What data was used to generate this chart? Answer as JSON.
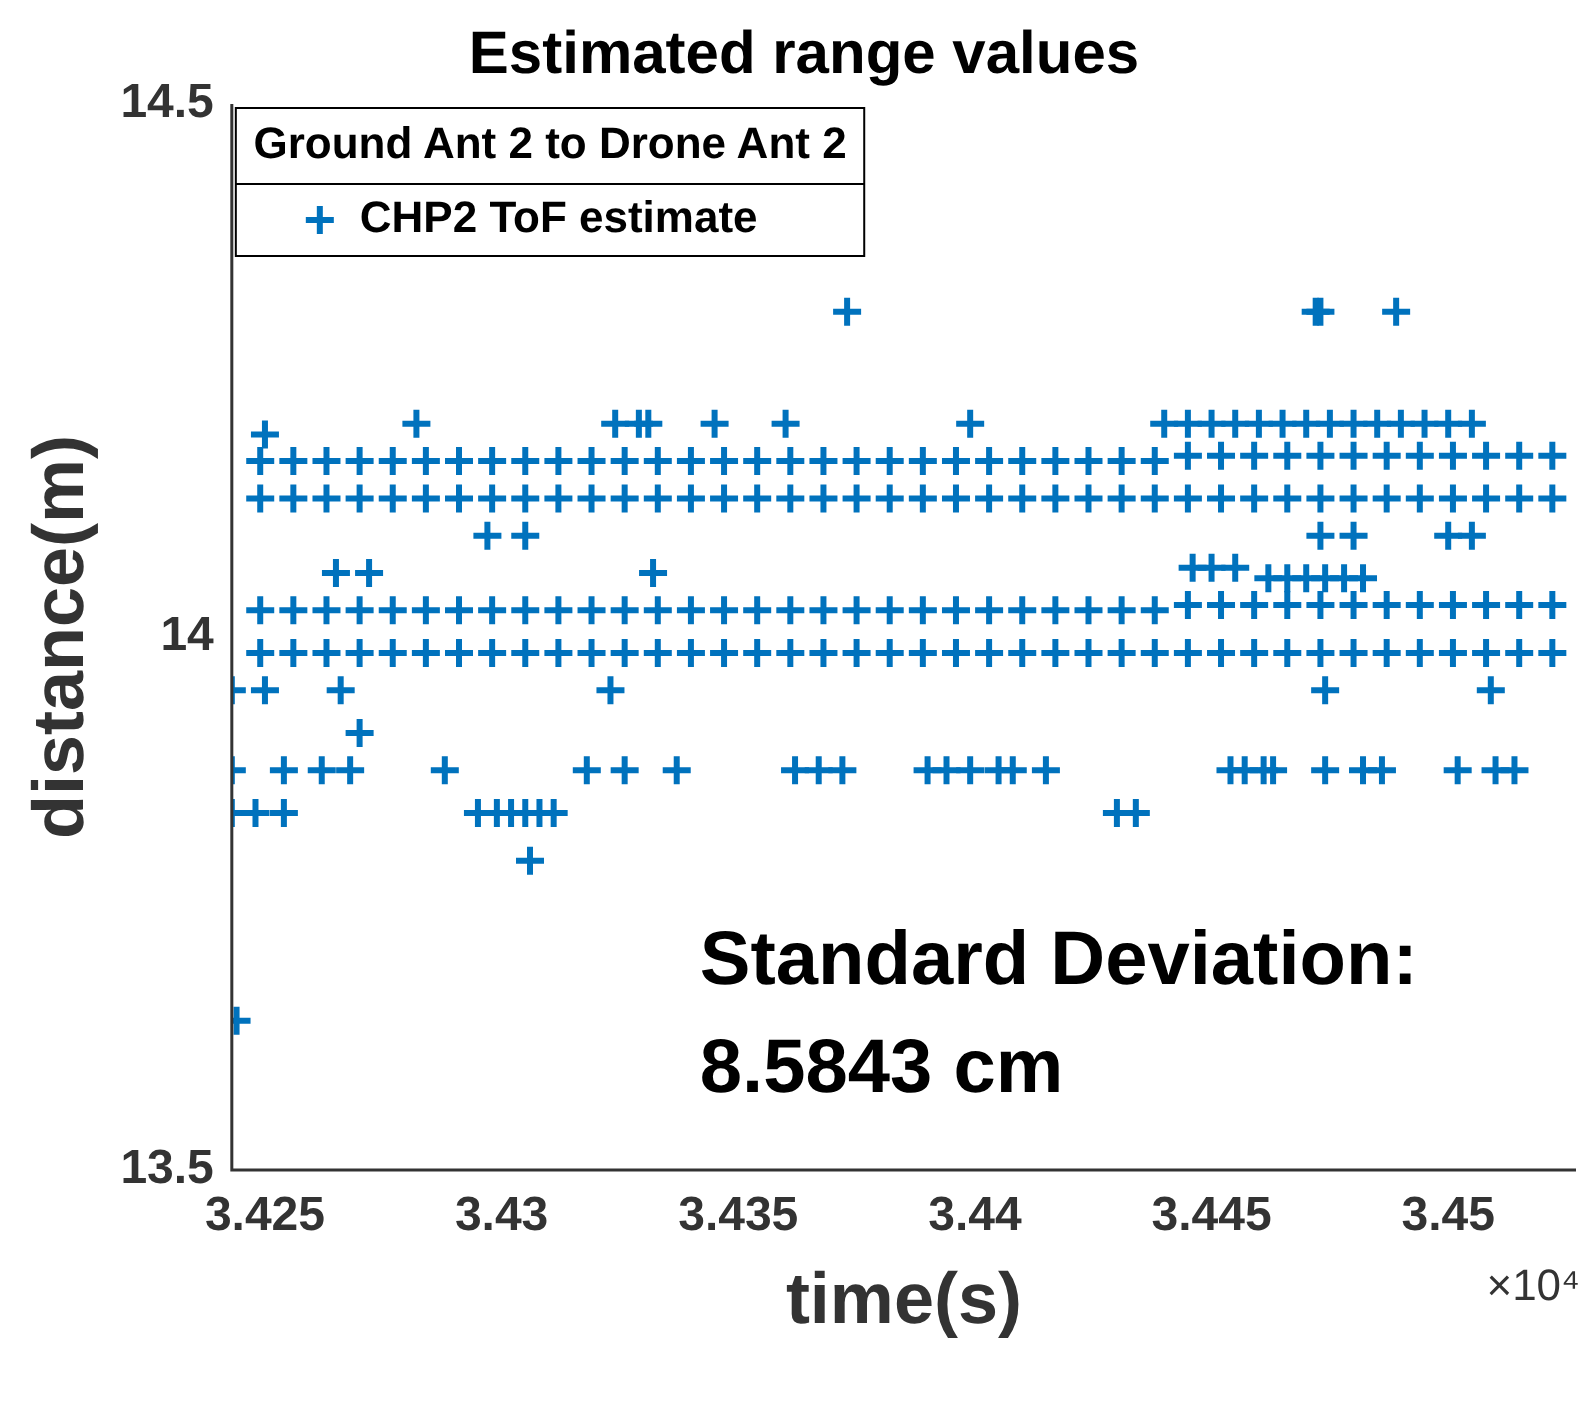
{
  "chart_data": {
    "type": "scatter",
    "title": "Estimated range values",
    "xlabel": "time(s)",
    "ylabel": "distance(m)",
    "legend_title": "Ground Ant 2 to Drone Ant 2",
    "xlim": [
      3.4243,
      3.4527
    ],
    "xticks": [
      3.425,
      3.43,
      3.435,
      3.44,
      3.445,
      3.45
    ],
    "ylim": [
      13.5,
      14.5
    ],
    "yticks": [
      13.5,
      14,
      14.5
    ],
    "grid": false,
    "legend": "top left",
    "marker": "cross",
    "annotations": [
      "Standard Deviation:\n8.5843 cm",
      "×10⁴"
    ],
    "series": [
      {
        "name": "CHP2 ToF estimate",
        "color": "#0072bd",
        "x": [
          3.4249,
          3.4256,
          3.4263,
          3.427,
          3.4277,
          3.4284,
          3.4291,
          3.4298,
          3.4305,
          3.4312,
          3.4319,
          3.4326,
          3.4333,
          3.434,
          3.4347,
          3.4354,
          3.4361,
          3.4368,
          3.4375,
          3.4382,
          3.4389,
          3.4396,
          3.4403,
          3.441,
          3.4417,
          3.4424,
          3.4431,
          3.4438,
          3.4445,
          3.4452,
          3.4459,
          3.4466,
          3.4473,
          3.448,
          3.4487,
          3.4494,
          3.4501,
          3.4508,
          3.4515,
          3.4522,
          3.4249,
          3.4256,
          3.4263,
          3.427,
          3.4277,
          3.4284,
          3.4291,
          3.4298,
          3.4305,
          3.4312,
          3.4319,
          3.4326,
          3.4333,
          3.434,
          3.4347,
          3.4354,
          3.4361,
          3.4368,
          3.4375,
          3.4382,
          3.4389,
          3.4396,
          3.4403,
          3.441,
          3.4417,
          3.4424,
          3.4431,
          3.4438,
          3.4445,
          3.4452,
          3.4459,
          3.4466,
          3.4473,
          3.448,
          3.4487,
          3.4494,
          3.4501,
          3.4508,
          3.4515,
          3.4522,
          3.4249,
          3.4256,
          3.4263,
          3.427,
          3.4277,
          3.4284,
          3.4291,
          3.4298,
          3.4305,
          3.4312,
          3.4319,
          3.4326,
          3.4333,
          3.434,
          3.4347,
          3.4354,
          3.4361,
          3.4368,
          3.4375,
          3.4382,
          3.4389,
          3.4396,
          3.4403,
          3.441,
          3.4417,
          3.4424,
          3.4431,
          3.4438,
          3.4445,
          3.4452,
          3.4459,
          3.4466,
          3.4473,
          3.448,
          3.4487,
          3.4494,
          3.4501,
          3.4508,
          3.4515,
          3.4522,
          3.4249,
          3.4256,
          3.4263,
          3.427,
          3.4277,
          3.4284,
          3.4291,
          3.4298,
          3.4305,
          3.4312,
          3.4319,
          3.4326,
          3.4333,
          3.434,
          3.4347,
          3.4354,
          3.4361,
          3.4368,
          3.4375,
          3.4382,
          3.4389,
          3.4396,
          3.4403,
          3.441,
          3.4417,
          3.4424,
          3.4431,
          3.4438,
          3.4445,
          3.4452,
          3.4459,
          3.4466,
          3.4473,
          3.448,
          3.4487,
          3.4494,
          3.4501,
          3.4508,
          3.4515,
          3.4522,
          3.4373,
          3.4472,
          3.4473,
          3.4489,
          3.425,
          3.4282,
          3.4324,
          3.4329,
          3.4331,
          3.4345,
          3.436,
          3.4399,
          3.444,
          3.4445,
          3.445,
          3.4455,
          3.446,
          3.4465,
          3.447,
          3.4475,
          3.448,
          3.4485,
          3.449,
          3.4495,
          3.45,
          3.4505,
          3.4265,
          3.4272,
          3.4332,
          3.4446,
          3.445,
          3.4455,
          3.4462,
          3.4466,
          3.447,
          3.4474,
          3.4478,
          3.4482,
          3.4297,
          3.4305,
          3.4473,
          3.448,
          3.45,
          3.4505,
          3.4243,
          3.425,
          3.4266,
          3.4323,
          3.4474,
          3.4509,
          3.427,
          3.4243,
          3.4254,
          3.4262,
          3.4268,
          3.4288,
          3.4318,
          3.4326,
          3.4337,
          3.4362,
          3.4367,
          3.4372,
          3.439,
          3.4394,
          3.4399,
          3.4405,
          3.4408,
          3.4415,
          3.4454,
          3.4457,
          3.4461,
          3.4463,
          3.4474,
          3.4482,
          3.4486,
          3.4502,
          3.451,
          3.4514,
          3.4243,
          3.4248,
          3.4254,
          3.4295,
          3.4299,
          3.4302,
          3.4305,
          3.4308,
          3.4311,
          3.443,
          3.4434,
          3.4306,
          3.4244
        ],
        "values": [
          14.165,
          14.165,
          14.165,
          14.165,
          14.165,
          14.165,
          14.165,
          14.165,
          14.165,
          14.165,
          14.165,
          14.165,
          14.165,
          14.165,
          14.165,
          14.165,
          14.165,
          14.165,
          14.165,
          14.165,
          14.165,
          14.165,
          14.165,
          14.165,
          14.165,
          14.165,
          14.165,
          14.165,
          14.17,
          14.17,
          14.17,
          14.17,
          14.17,
          14.17,
          14.17,
          14.17,
          14.17,
          14.17,
          14.17,
          14.17,
          14.13,
          14.13,
          14.13,
          14.13,
          14.13,
          14.13,
          14.13,
          14.13,
          14.13,
          14.13,
          14.13,
          14.13,
          14.13,
          14.13,
          14.13,
          14.13,
          14.13,
          14.13,
          14.13,
          14.13,
          14.13,
          14.13,
          14.13,
          14.13,
          14.13,
          14.13,
          14.13,
          14.13,
          14.13,
          14.13,
          14.13,
          14.13,
          14.13,
          14.13,
          14.13,
          14.13,
          14.13,
          14.13,
          14.13,
          14.13,
          14.025,
          14.025,
          14.025,
          14.025,
          14.025,
          14.025,
          14.025,
          14.025,
          14.025,
          14.025,
          14.025,
          14.025,
          14.025,
          14.025,
          14.025,
          14.025,
          14.025,
          14.025,
          14.025,
          14.025,
          14.025,
          14.025,
          14.025,
          14.025,
          14.025,
          14.025,
          14.025,
          14.025,
          14.03,
          14.03,
          14.03,
          14.03,
          14.03,
          14.03,
          14.03,
          14.03,
          14.03,
          14.03,
          14.03,
          14.03,
          13.985,
          13.985,
          13.985,
          13.985,
          13.985,
          13.985,
          13.985,
          13.985,
          13.985,
          13.985,
          13.985,
          13.985,
          13.985,
          13.985,
          13.985,
          13.985,
          13.985,
          13.985,
          13.985,
          13.985,
          13.985,
          13.985,
          13.985,
          13.985,
          13.985,
          13.985,
          13.985,
          13.985,
          13.985,
          13.985,
          13.985,
          13.985,
          13.985,
          13.985,
          13.985,
          13.985,
          13.985,
          13.985,
          13.985,
          13.985,
          14.305,
          14.305,
          14.305,
          14.305,
          14.19,
          14.2,
          14.2,
          14.2,
          14.2,
          14.2,
          14.2,
          14.2,
          14.2,
          14.2,
          14.2,
          14.2,
          14.2,
          14.2,
          14.2,
          14.2,
          14.2,
          14.2,
          14.2,
          14.2,
          14.2,
          14.2,
          14.06,
          14.06,
          14.06,
          14.065,
          14.065,
          14.065,
          14.055,
          14.055,
          14.055,
          14.055,
          14.055,
          14.055,
          14.095,
          14.095,
          14.095,
          14.095,
          14.095,
          14.095,
          13.95,
          13.95,
          13.95,
          13.95,
          13.95,
          13.95,
          13.91,
          13.875,
          13.875,
          13.875,
          13.875,
          13.875,
          13.875,
          13.875,
          13.875,
          13.875,
          13.875,
          13.875,
          13.875,
          13.875,
          13.875,
          13.875,
          13.875,
          13.875,
          13.875,
          13.875,
          13.875,
          13.875,
          13.875,
          13.875,
          13.875,
          13.875,
          13.875,
          13.875,
          13.835,
          13.835,
          13.835,
          13.835,
          13.835,
          13.835,
          13.835,
          13.835,
          13.835,
          13.835,
          13.835,
          13.79,
          13.64
        ]
      }
    ]
  }
}
